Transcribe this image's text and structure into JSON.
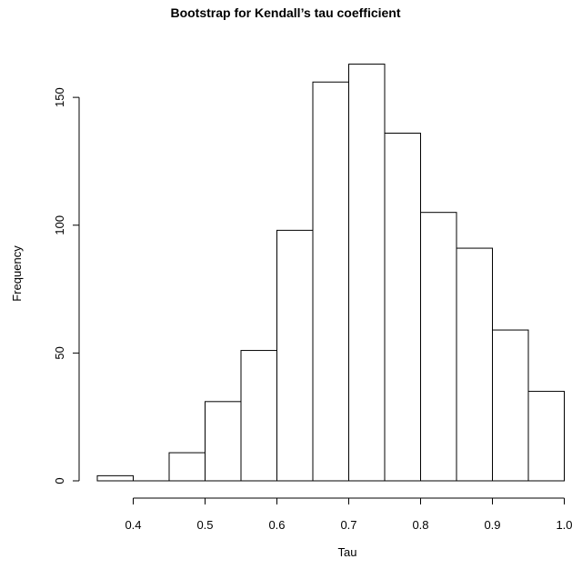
{
  "chart_data": {
    "type": "bar",
    "title": "Bootstrap for Kendall’s tau coefficient",
    "xlabel": "Tau",
    "ylabel": "Frequency",
    "bin_edges": [
      0.35,
      0.4,
      0.45,
      0.5,
      0.55,
      0.6,
      0.65,
      0.7,
      0.75,
      0.8,
      0.85,
      0.9,
      0.95,
      1.0
    ],
    "values": [
      2,
      0,
      11,
      31,
      51,
      98,
      156,
      163,
      136,
      105,
      91,
      59,
      35
    ],
    "xlim": [
      0.35,
      1.0
    ],
    "ylim": [
      0,
      170
    ],
    "x_ticks": [
      0.4,
      0.5,
      0.6,
      0.7,
      0.8,
      0.9,
      1.0
    ],
    "x_tick_labels": [
      "0.4",
      "0.5",
      "0.6",
      "0.7",
      "0.8",
      "0.9",
      "1.0"
    ],
    "y_ticks": [
      0,
      50,
      100,
      150
    ],
    "y_tick_labels": [
      "0",
      "50",
      "100",
      "150"
    ],
    "grid": false,
    "legend": "none",
    "colors": {
      "bar_fill": "#ffffff",
      "bar_stroke": "#000000"
    }
  }
}
